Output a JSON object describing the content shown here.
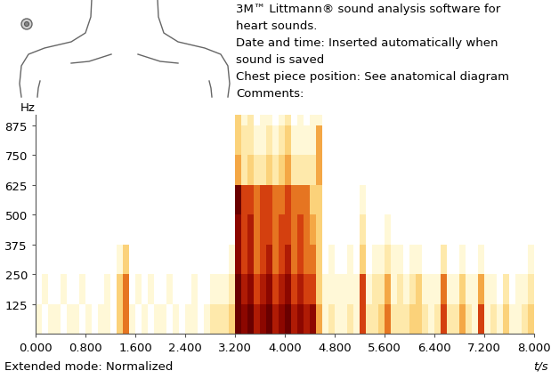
{
  "header": {
    "lines": [
      "3M™ Littmann® sound analysis software for",
      "heart sounds.",
      "Date and time: Inserted automatically when",
      "sound is saved",
      "Chest piece position: See anatomical diagram",
      "Comments:"
    ]
  },
  "chart_data": {
    "type": "heatmap",
    "y_label": "Hz",
    "x_label": "t/s",
    "note": "Extended mode: Normalized",
    "xlim": [
      0,
      8
    ],
    "ylim": [
      0,
      920
    ],
    "xticks": [
      {
        "value": 0.0,
        "label": "0.000"
      },
      {
        "value": 0.8,
        "label": "0.800"
      },
      {
        "value": 1.6,
        "label": "1.600"
      },
      {
        "value": 2.4,
        "label": "2.400"
      },
      {
        "value": 3.2,
        "label": "3.200"
      },
      {
        "value": 4.0,
        "label": "4.000"
      },
      {
        "value": 4.8,
        "label": "4.800"
      },
      {
        "value": 5.6,
        "label": "5.600"
      },
      {
        "value": 6.4,
        "label": "6.400"
      },
      {
        "value": 7.2,
        "label": "7.200"
      },
      {
        "value": 8.0,
        "label": "8.000"
      }
    ],
    "yticks": [
      125,
      250,
      375,
      500,
      625,
      750,
      875
    ],
    "grid": false,
    "cell_range": [
      0,
      9
    ],
    "x_edges": [
      0,
      0.1,
      0.2,
      0.3,
      0.4,
      0.5,
      0.6,
      0.7,
      0.8,
      0.9,
      1.0,
      1.1,
      1.2,
      1.3,
      1.4,
      1.5,
      1.6,
      1.7,
      1.8,
      1.9,
      2.0,
      2.1,
      2.2,
      2.3,
      2.4,
      2.5,
      2.6,
      2.7,
      2.8,
      2.9,
      3.0,
      3.1,
      3.2,
      3.3,
      3.4,
      3.5,
      3.6,
      3.7,
      3.8,
      3.9,
      4.0,
      4.1,
      4.2,
      4.3,
      4.4,
      4.5,
      4.6,
      4.7,
      4.8,
      4.9,
      5.0,
      5.1,
      5.2,
      5.3,
      5.4,
      5.5,
      5.6,
      5.7,
      5.8,
      5.9,
      6.0,
      6.1,
      6.2,
      6.3,
      6.4,
      6.5,
      6.6,
      6.7,
      6.8,
      6.9,
      7.0,
      7.1,
      7.2,
      7.3,
      7.4,
      7.5,
      7.6,
      7.7,
      7.8,
      7.9,
      8.0
    ],
    "y_edges": [
      0,
      125,
      250,
      375,
      500,
      625,
      750,
      875,
      1000
    ],
    "cells": [
      [
        1,
        0,
        1,
        1,
        0,
        1,
        1,
        0,
        1,
        0,
        1,
        1,
        0,
        3,
        5,
        1,
        0,
        1,
        0,
        1,
        1,
        0,
        1,
        0,
        1,
        1,
        0,
        1,
        2,
        2,
        2,
        3,
        9,
        8,
        9,
        7,
        8,
        9,
        7,
        8,
        9,
        7,
        8,
        7,
        8,
        4,
        1,
        2,
        1,
        1,
        2,
        1,
        6,
        2,
        2,
        3,
        5,
        2,
        2,
        2,
        3,
        3,
        2,
        1,
        2,
        6,
        2,
        2,
        4,
        2,
        1,
        6,
        1,
        2,
        1,
        3,
        1,
        1,
        2,
        3
      ],
      [
        0,
        1,
        0,
        0,
        1,
        0,
        0,
        1,
        0,
        0,
        0,
        1,
        0,
        3,
        5,
        0,
        1,
        0,
        1,
        0,
        0,
        1,
        0,
        0,
        0,
        1,
        0,
        0,
        1,
        1,
        1,
        2,
        9,
        7,
        8,
        6,
        7,
        8,
        6,
        7,
        8,
        6,
        7,
        6,
        6,
        3,
        1,
        1,
        1,
        1,
        1,
        1,
        6,
        1,
        2,
        2,
        4,
        1,
        2,
        1,
        2,
        3,
        1,
        1,
        1,
        5,
        1,
        1,
        3,
        1,
        1,
        4,
        1,
        1,
        0,
        2,
        0,
        1,
        1,
        2
      ],
      [
        0,
        0,
        0,
        0,
        0,
        0,
        0,
        0,
        0,
        0,
        0,
        0,
        0,
        1,
        3,
        0,
        0,
        0,
        0,
        0,
        0,
        0,
        0,
        0,
        0,
        0,
        0,
        0,
        0,
        0,
        0,
        1,
        8,
        6,
        7,
        5,
        6,
        7,
        5,
        6,
        7,
        5,
        6,
        5,
        5,
        3,
        0,
        1,
        0,
        0,
        1,
        0,
        3,
        0,
        1,
        1,
        2,
        1,
        1,
        0,
        1,
        1,
        0,
        0,
        0,
        2,
        0,
        0,
        1,
        0,
        0,
        1,
        0,
        0,
        0,
        0,
        0,
        0,
        0,
        1
      ],
      [
        0,
        0,
        0,
        0,
        0,
        0,
        0,
        0,
        0,
        0,
        0,
        0,
        0,
        0,
        0,
        0,
        0,
        0,
        0,
        0,
        0,
        0,
        0,
        0,
        0,
        0,
        0,
        0,
        0,
        0,
        0,
        0,
        8,
        6,
        7,
        5,
        6,
        6,
        5,
        6,
        6,
        5,
        6,
        5,
        4,
        3,
        0,
        0,
        0,
        0,
        0,
        0,
        2,
        0,
        0,
        0,
        1,
        0,
        0,
        0,
        0,
        0,
        0,
        0,
        0,
        0,
        0,
        0,
        0,
        0,
        0,
        0,
        0,
        0,
        0,
        0,
        0,
        0,
        0,
        0
      ],
      [
        0,
        0,
        0,
        0,
        0,
        0,
        0,
        0,
        0,
        0,
        0,
        0,
        0,
        0,
        0,
        0,
        0,
        0,
        0,
        0,
        0,
        0,
        0,
        0,
        0,
        0,
        0,
        0,
        0,
        0,
        0,
        0,
        9,
        6,
        6,
        5,
        6,
        6,
        5,
        5,
        6,
        5,
        5,
        5,
        3,
        3,
        0,
        0,
        0,
        0,
        0,
        0,
        1,
        0,
        0,
        0,
        0,
        0,
        0,
        0,
        0,
        0,
        0,
        0,
        0,
        0,
        0,
        0,
        0,
        0,
        0,
        0,
        0,
        0,
        0,
        0,
        0,
        0,
        0,
        0
      ],
      [
        0,
        0,
        0,
        0,
        0,
        0,
        0,
        0,
        0,
        0,
        0,
        0,
        0,
        0,
        0,
        0,
        0,
        0,
        0,
        0,
        0,
        0,
        0,
        0,
        0,
        0,
        0,
        0,
        0,
        0,
        0,
        0,
        4,
        2,
        3,
        2,
        2,
        3,
        2,
        3,
        4,
        2,
        2,
        2,
        2,
        4,
        0,
        0,
        0,
        0,
        0,
        0,
        0,
        0,
        0,
        0,
        0,
        0,
        0,
        0,
        0,
        0,
        0,
        0,
        0,
        0,
        0,
        0,
        0,
        0,
        0,
        0,
        0,
        0,
        0,
        0,
        0,
        0,
        0,
        0
      ],
      [
        0,
        0,
        0,
        0,
        0,
        0,
        0,
        0,
        0,
        0,
        0,
        0,
        0,
        0,
        0,
        0,
        0,
        0,
        0,
        0,
        0,
        0,
        0,
        0,
        0,
        0,
        0,
        0,
        0,
        0,
        0,
        0,
        3,
        2,
        2,
        1,
        1,
        2,
        1,
        2,
        3,
        1,
        1,
        1,
        1,
        4,
        0,
        0,
        0,
        0,
        0,
        0,
        0,
        0,
        0,
        0,
        0,
        0,
        0,
        0,
        0,
        0,
        0,
        0,
        0,
        0,
        0,
        0,
        0,
        0,
        0,
        0,
        0,
        0,
        0,
        0,
        0,
        0,
        0,
        0
      ],
      [
        0,
        0,
        0,
        0,
        0,
        0,
        0,
        0,
        0,
        0,
        0,
        0,
        0,
        0,
        0,
        0,
        0,
        0,
        0,
        0,
        0,
        0,
        0,
        0,
        0,
        0,
        0,
        0,
        0,
        0,
        0,
        0,
        3,
        1,
        2,
        0,
        1,
        1,
        0,
        1,
        2,
        0,
        1,
        0,
        1,
        1,
        0,
        0,
        0,
        0,
        0,
        0,
        0,
        0,
        0,
        0,
        0,
        0,
        0,
        0,
        0,
        0,
        0,
        0,
        0,
        0,
        0,
        0,
        0,
        0,
        0,
        0,
        0,
        0,
        0,
        0,
        0,
        0,
        0,
        0
      ]
    ]
  }
}
